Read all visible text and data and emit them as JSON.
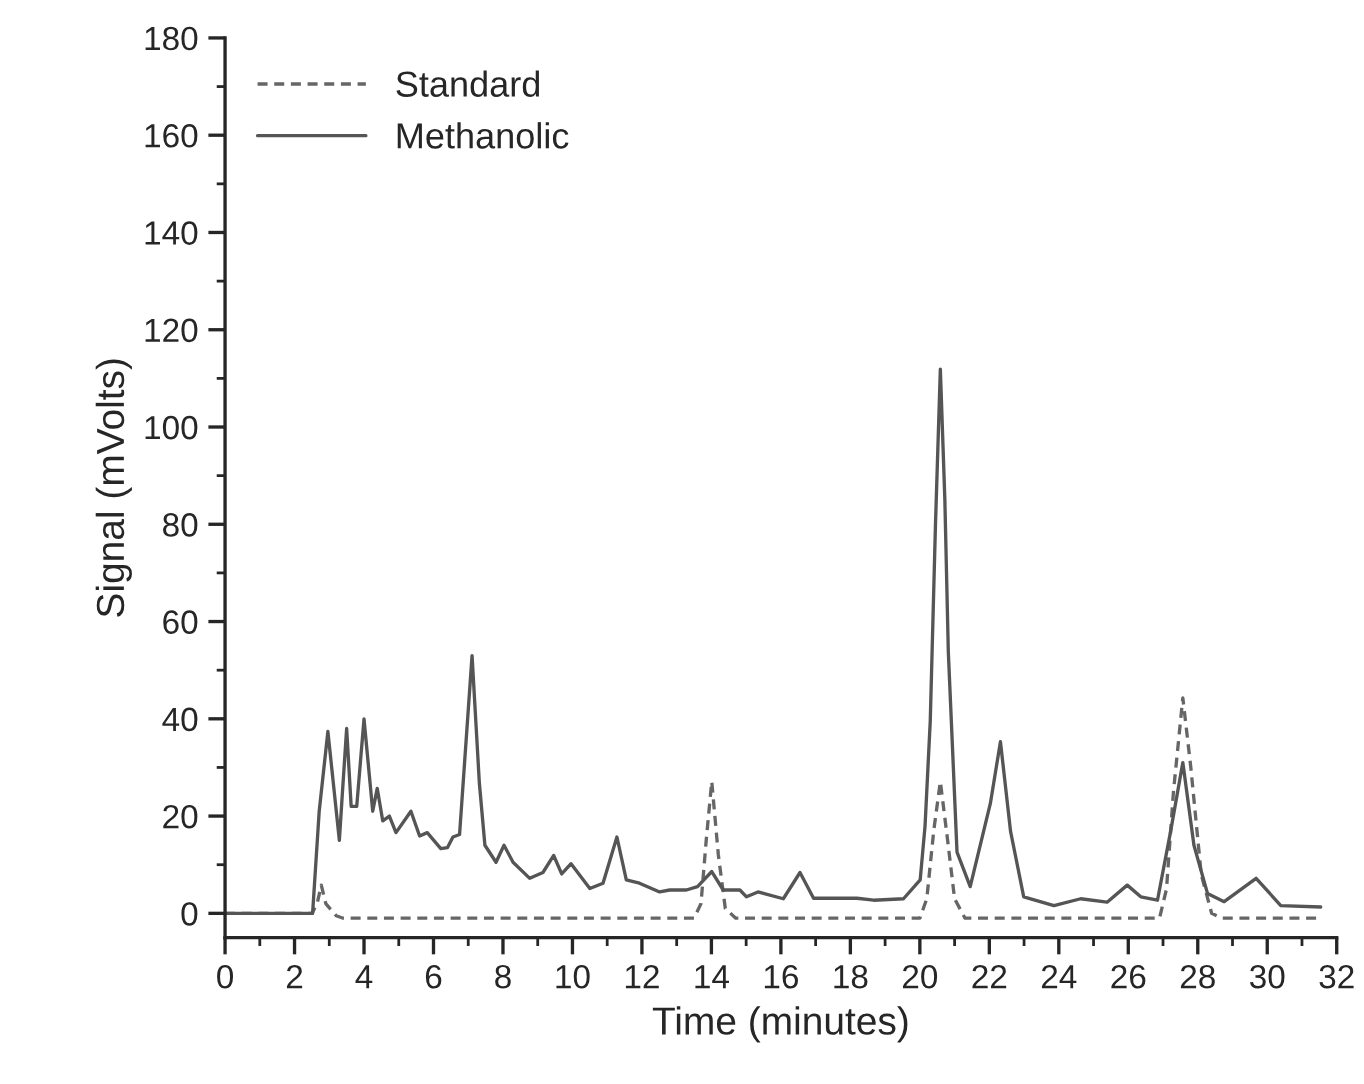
{
  "chart_data": {
    "type": "line",
    "xlabel": "Time (minutes)",
    "ylabel": "Signal (mVolts)",
    "xlim": [
      0,
      32
    ],
    "xticks": [
      0,
      2,
      4,
      6,
      8,
      10,
      12,
      14,
      16,
      18,
      20,
      22,
      24,
      26,
      28,
      30,
      32
    ],
    "ylim": [
      -5,
      180
    ],
    "yticks": [
      0,
      20,
      40,
      60,
      80,
      100,
      120,
      140,
      160,
      180
    ],
    "grid": false,
    "legend": "top left",
    "series": [
      {
        "name": "Standard",
        "color": "#666666",
        "line_style": "dashed",
        "x": [
          0,
          2.5,
          2.65,
          2.77,
          2.9,
          3.2,
          3.4,
          13.5,
          13.7,
          13.85,
          14.01,
          14.2,
          14.4,
          14.7,
          20.0,
          20.2,
          20.4,
          20.59,
          20.8,
          21.0,
          21.3,
          26.9,
          27.1,
          27.3,
          27.57,
          27.8,
          28.1,
          28.4,
          28.7,
          31.5
        ],
        "values": [
          0,
          0,
          2,
          5.8,
          2,
          -0.5,
          -1,
          -1,
          2,
          15,
          27.1,
          12,
          1,
          -1,
          -1,
          3,
          17,
          27.1,
          15,
          3,
          -1,
          -1,
          5,
          25,
          44.3,
          30,
          8,
          0,
          -1,
          -1
        ]
      },
      {
        "name": "Methanolic",
        "color": "#555555",
        "line_style": "solid",
        "x": [
          0,
          2.52,
          2.71,
          2.96,
          3.29,
          3.38,
          3.5,
          3.63,
          3.79,
          4.0,
          4.25,
          4.38,
          4.54,
          4.73,
          4.92,
          5.35,
          5.6,
          5.82,
          6.21,
          6.4,
          6.56,
          6.75,
          7.11,
          7.32,
          7.48,
          7.8,
          8.03,
          8.29,
          8.77,
          9.15,
          9.46,
          9.69,
          9.96,
          10.5,
          10.88,
          11.28,
          11.55,
          11.93,
          12.51,
          12.8,
          13.28,
          13.6,
          14.01,
          14.34,
          14.82,
          15.01,
          15.34,
          16.07,
          16.55,
          16.94,
          18.19,
          18.67,
          19.53,
          20.01,
          20.15,
          20.3,
          20.45,
          20.59,
          20.72,
          20.82,
          21.07,
          21.45,
          22.03,
          22.32,
          22.61,
          22.99,
          23.86,
          24.63,
          25.39,
          25.97,
          26.36,
          26.84,
          27.22,
          27.57,
          27.89,
          28.28,
          28.76,
          29.68,
          30.39,
          31.54
        ],
        "values": [
          0,
          0,
          21,
          37.4,
          15,
          25,
          38,
          22,
          22,
          40,
          21,
          25.7,
          19,
          20,
          16.6,
          21,
          15.9,
          16.6,
          13.3,
          13.5,
          15.7,
          16.2,
          53,
          26.8,
          14,
          10.5,
          14,
          10.5,
          7.2,
          8.4,
          11.9,
          8.1,
          10.2,
          5.1,
          6.2,
          15.7,
          6.9,
          6.2,
          4.4,
          4.8,
          4.8,
          5.5,
          8.6,
          4.8,
          4.8,
          3.4,
          4.4,
          3,
          8.4,
          3.1,
          3.1,
          2.7,
          3,
          6.9,
          18,
          39.6,
          80,
          111.9,
          85,
          53.7,
          12.6,
          5.5,
          22.6,
          35.3,
          16.9,
          3.4,
          1.6,
          3,
          2.3,
          5.8,
          3.4,
          2.7,
          16.9,
          31,
          14,
          4.1,
          2.4,
          7.2,
          1.6,
          1.3
        ]
      }
    ]
  }
}
